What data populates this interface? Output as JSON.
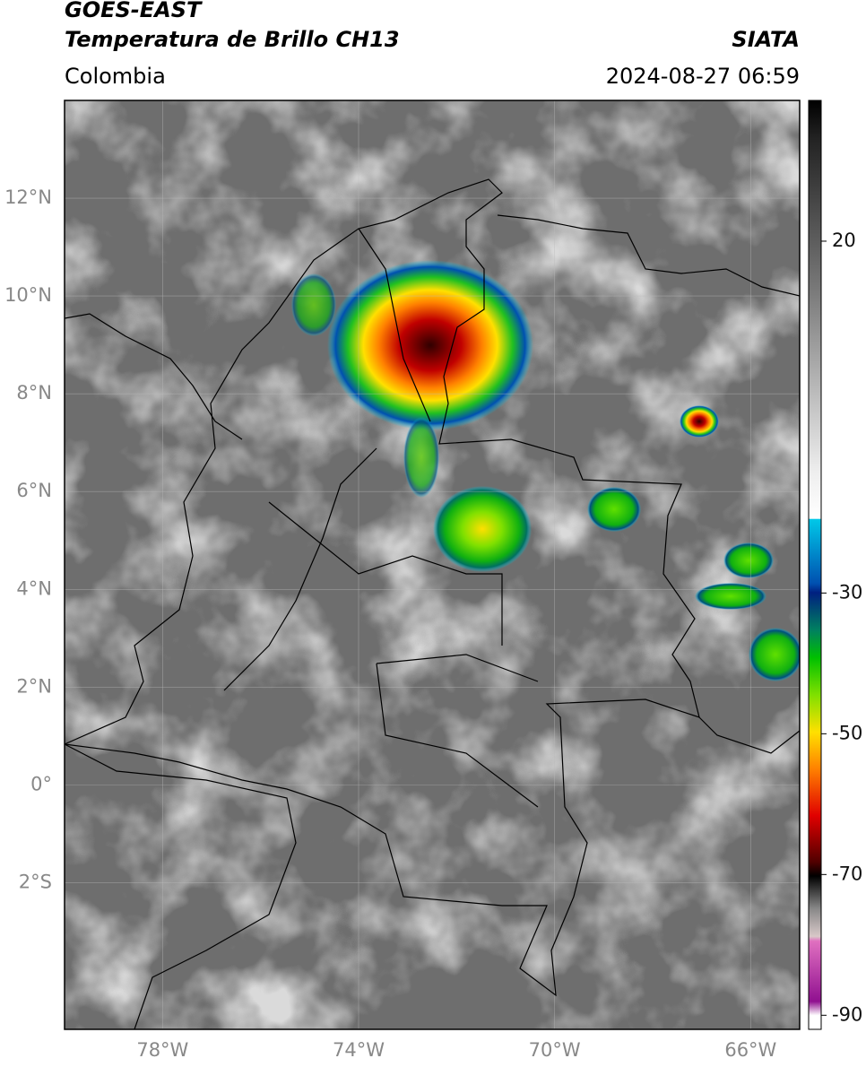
{
  "header": {
    "satellite": "GOES-EAST",
    "product": "Temperatura de Brillo CH13",
    "source": "SIATA",
    "region": "Colombia",
    "datetime": "2024-08-27 06:59"
  },
  "map": {
    "xlim": [
      -80,
      -65
    ],
    "ylim": [
      -5,
      14
    ],
    "xticks": [
      {
        "value": -78,
        "label": "78°W"
      },
      {
        "value": -74,
        "label": "74°W"
      },
      {
        "value": -70,
        "label": "70°W"
      },
      {
        "value": -66,
        "label": "66°W"
      }
    ],
    "yticks": [
      {
        "value": 12,
        "label": "12°N"
      },
      {
        "value": 10,
        "label": "10°N"
      },
      {
        "value": 8,
        "label": "8°N"
      },
      {
        "value": 6,
        "label": "6°N"
      },
      {
        "value": 4,
        "label": "4°N"
      },
      {
        "value": 2,
        "label": "2°N"
      },
      {
        "value": 0,
        "label": "0°"
      },
      {
        "value": -2,
        "label": "2°S"
      }
    ],
    "grid": true
  },
  "colorbar": {
    "lim": [
      -92,
      40
    ],
    "ticks": [
      20,
      -30,
      -50,
      -70,
      -90
    ]
  }
}
